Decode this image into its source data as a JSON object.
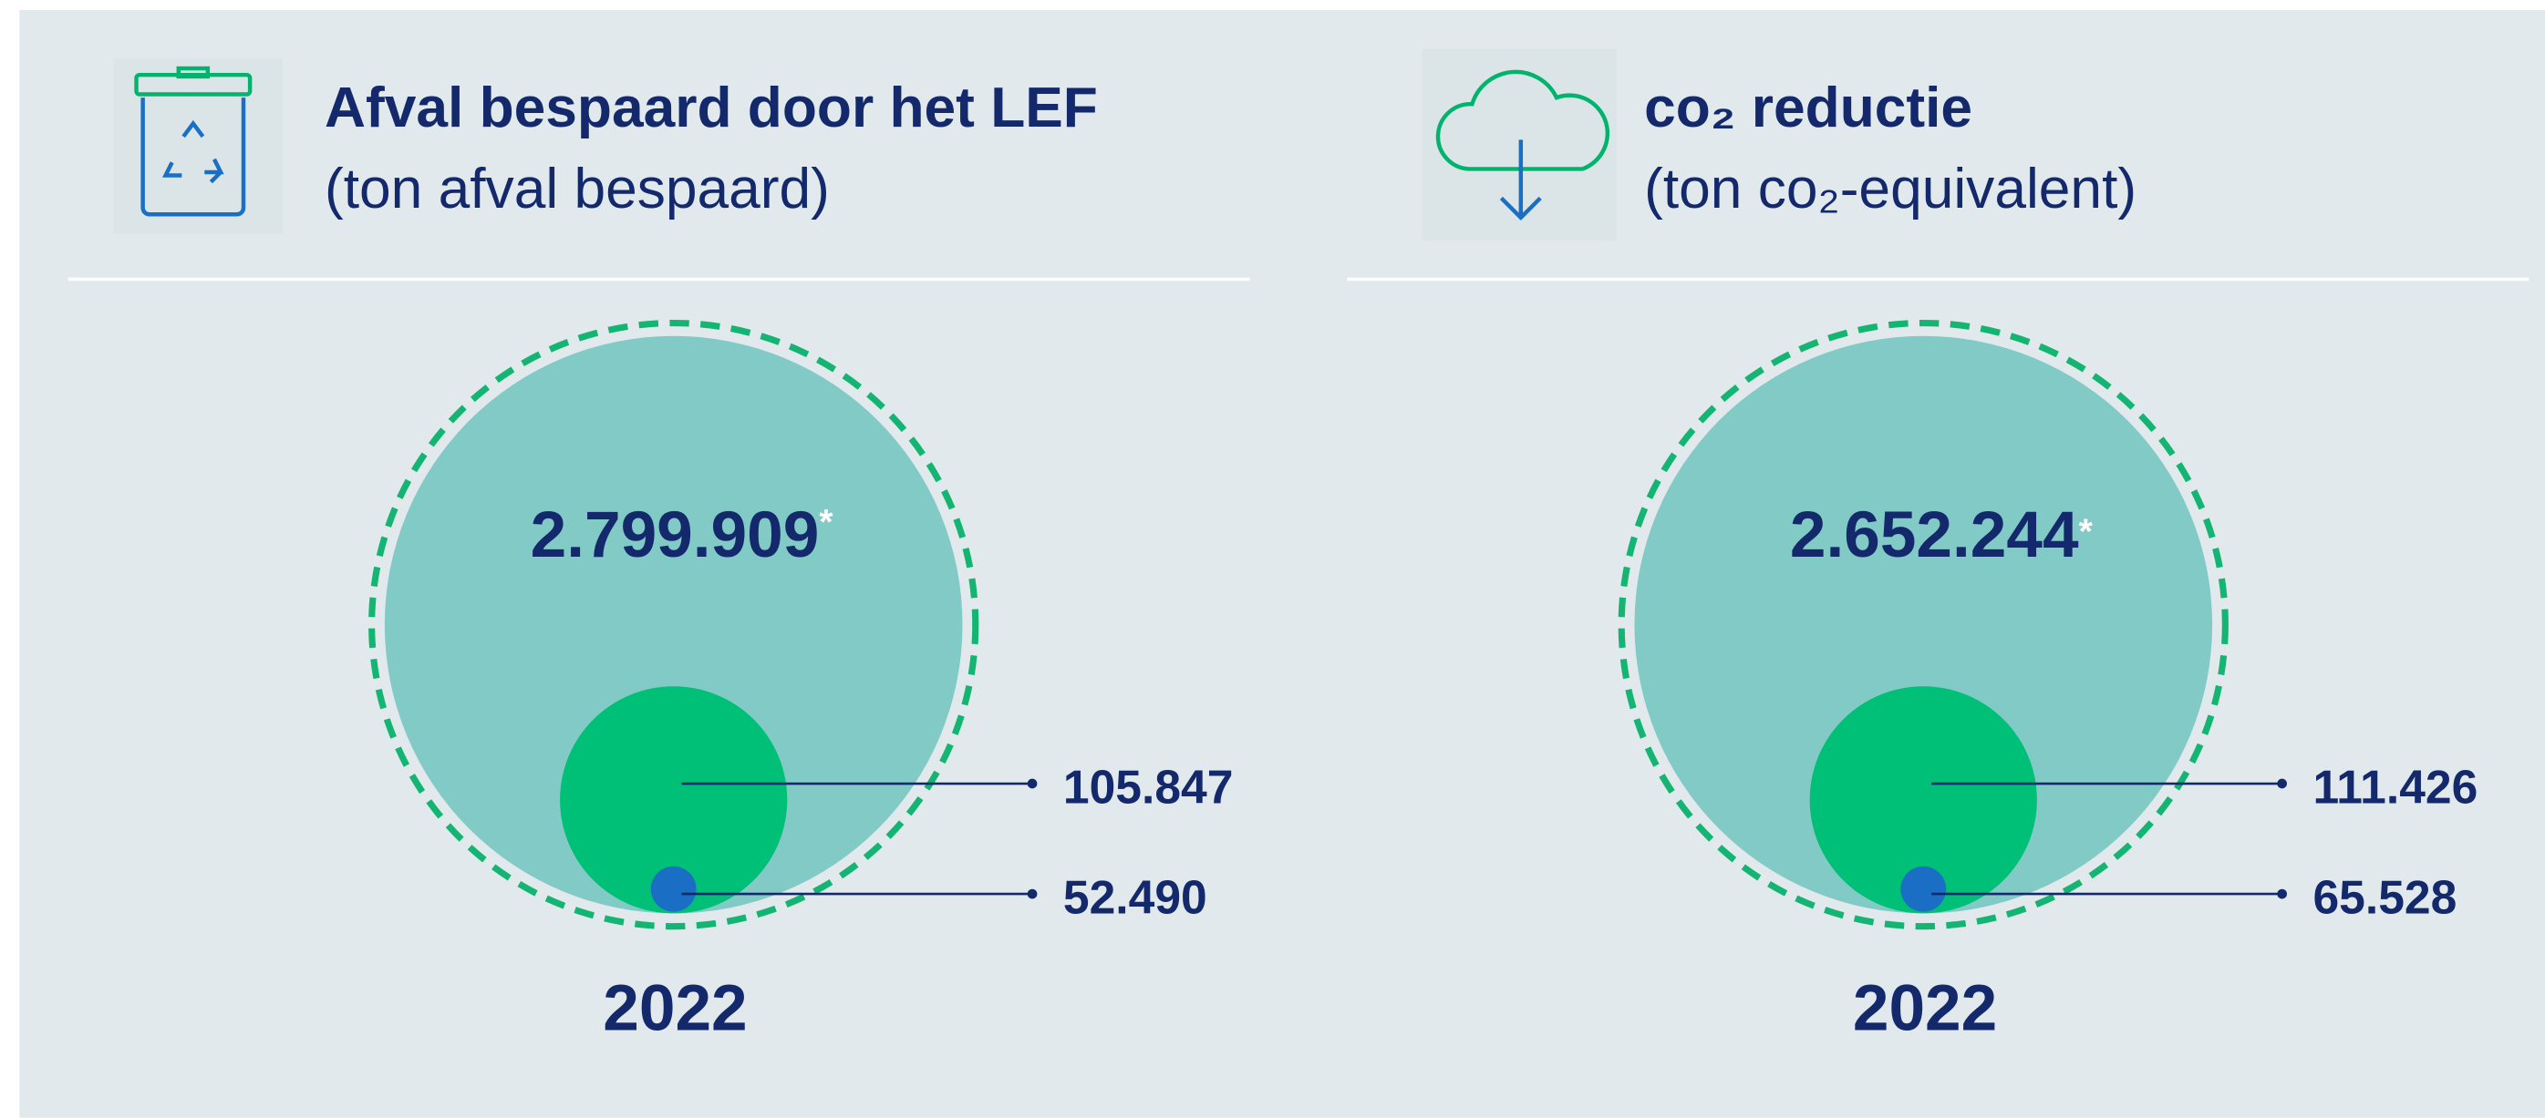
{
  "panels": [
    {
      "title": "Afval bespaard door het LEF",
      "subtitle": "(ton afval bespaard)",
      "total": "2.799.909",
      "total_marker": "*",
      "middle": "105.847",
      "inner": "52.490",
      "year": "2022"
    },
    {
      "title": "co₂ reductie",
      "subtitle": "(ton co₂-equivalent)",
      "total": "2.652.244",
      "total_marker": "*",
      "middle": "111.426",
      "inner": "65.528",
      "year": "2022"
    }
  ]
}
